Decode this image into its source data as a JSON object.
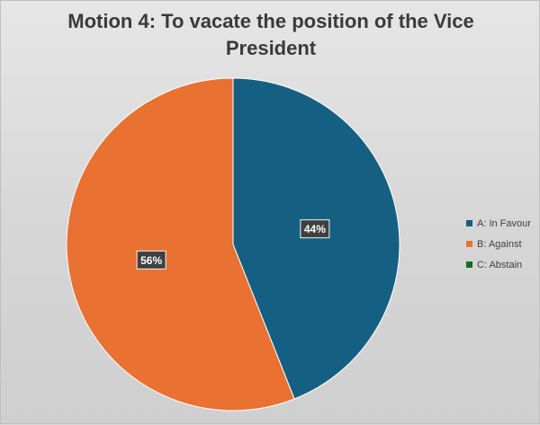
{
  "chart_data": {
    "type": "pie",
    "title": "Motion 4: To vacate the position of the Vice President",
    "title_lines": [
      "Motion 4: To vacate the position of the Vice",
      "President"
    ],
    "categories": [
      "A: In Favour",
      "B: Against",
      "C: Abstain"
    ],
    "values": [
      44,
      56,
      0
    ],
    "data_labels": [
      "44%",
      "56%",
      ""
    ],
    "colors": [
      "#156082",
      "#e97132",
      "#196b24"
    ],
    "legend_position": "right",
    "start_angle": "12 o'clock, clockwise"
  }
}
